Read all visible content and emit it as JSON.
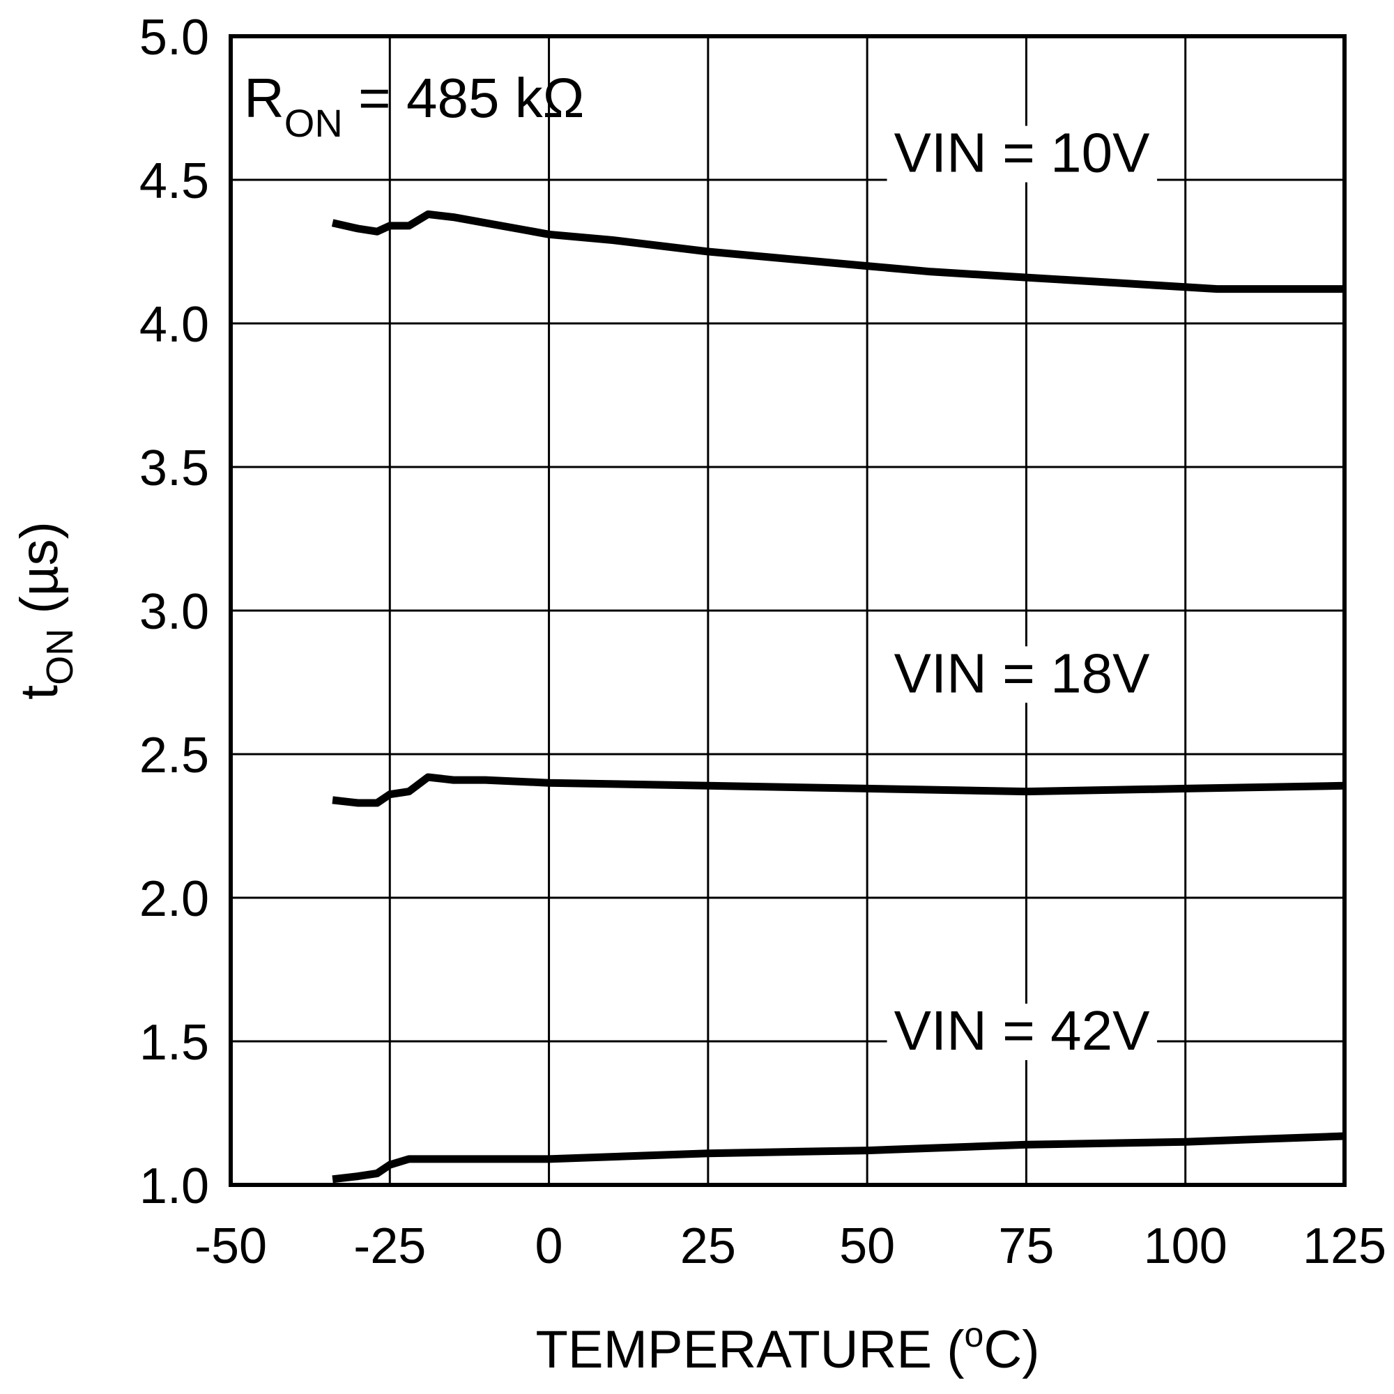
{
  "chart_data": {
    "type": "line",
    "xlabel": "TEMPERATURE (°C)",
    "xlabel_main": "TEMPERATURE (",
    "xlabel_unit_sup": "o",
    "xlabel_unit_tail": "C)",
    "ylabel": "t_ON (µs)",
    "ylabel_main": "t",
    "ylabel_sub": "ON",
    "ylabel_tail": " (µs)",
    "xlim": [
      -50,
      125
    ],
    "ylim": [
      1.0,
      5.0
    ],
    "xticks": [
      "-50",
      "-25",
      "0",
      "25",
      "50",
      "75",
      "100",
      "125"
    ],
    "yticks": [
      "1.0",
      "1.5",
      "2.0",
      "2.5",
      "3.0",
      "3.5",
      "4.0",
      "4.5",
      "5.0"
    ],
    "grid": true,
    "annotation": {
      "r_main": "R",
      "r_sub": "ON",
      "r_value": " = 485 kΩ"
    },
    "series": [
      {
        "name": "VIN = 10V",
        "x": [
          -34,
          -30,
          -27,
          -25,
          -22,
          -19,
          -15,
          -10,
          -5,
          0,
          10,
          25,
          40,
          50,
          60,
          75,
          90,
          105,
          115,
          125
        ],
        "y": [
          4.35,
          4.33,
          4.32,
          4.34,
          4.34,
          4.38,
          4.37,
          4.35,
          4.33,
          4.31,
          4.29,
          4.25,
          4.22,
          4.2,
          4.18,
          4.16,
          4.14,
          4.12,
          4.12,
          4.12
        ]
      },
      {
        "name": "VIN = 18V",
        "x": [
          -34,
          -30,
          -27,
          -25,
          -22,
          -19,
          -15,
          -10,
          0,
          25,
          50,
          75,
          100,
          125
        ],
        "y": [
          2.34,
          2.33,
          2.33,
          2.36,
          2.37,
          2.42,
          2.41,
          2.41,
          2.4,
          2.39,
          2.38,
          2.37,
          2.38,
          2.39
        ]
      },
      {
        "name": "VIN = 42V",
        "x": [
          -34,
          -30,
          -27,
          -25,
          -22,
          -10,
          0,
          25,
          50,
          75,
          100,
          125
        ],
        "y": [
          1.02,
          1.03,
          1.04,
          1.07,
          1.09,
          1.09,
          1.09,
          1.11,
          1.12,
          1.14,
          1.15,
          1.17
        ]
      }
    ]
  }
}
